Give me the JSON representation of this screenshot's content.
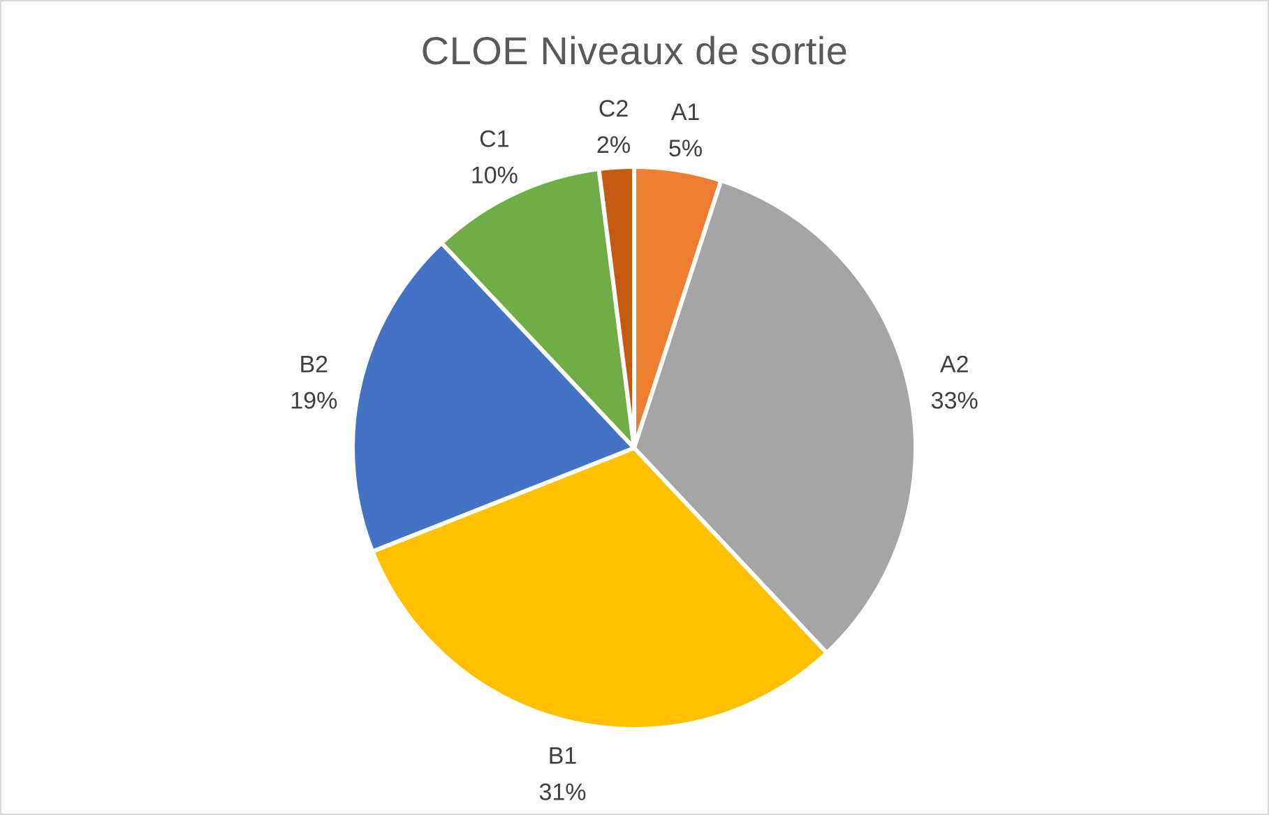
{
  "chart_data": {
    "type": "pie",
    "title": "CLOE Niveaux de sortie",
    "categories": [
      "A1",
      "A2",
      "B1",
      "B2",
      "C1",
      "C2"
    ],
    "values": [
      5,
      33,
      31,
      19,
      10,
      2
    ],
    "percent_labels": [
      "5%",
      "33%",
      "31%",
      "19%",
      "10%",
      "2%"
    ],
    "colors": [
      "#ED7D31",
      "#A5A5A5",
      "#FFC000",
      "#4472C4",
      "#70AD47",
      "#C55A11"
    ],
    "start_angle_deg": 0,
    "direction": "clockwise",
    "legend": "none",
    "data_labels": "category and percentage, outside"
  }
}
